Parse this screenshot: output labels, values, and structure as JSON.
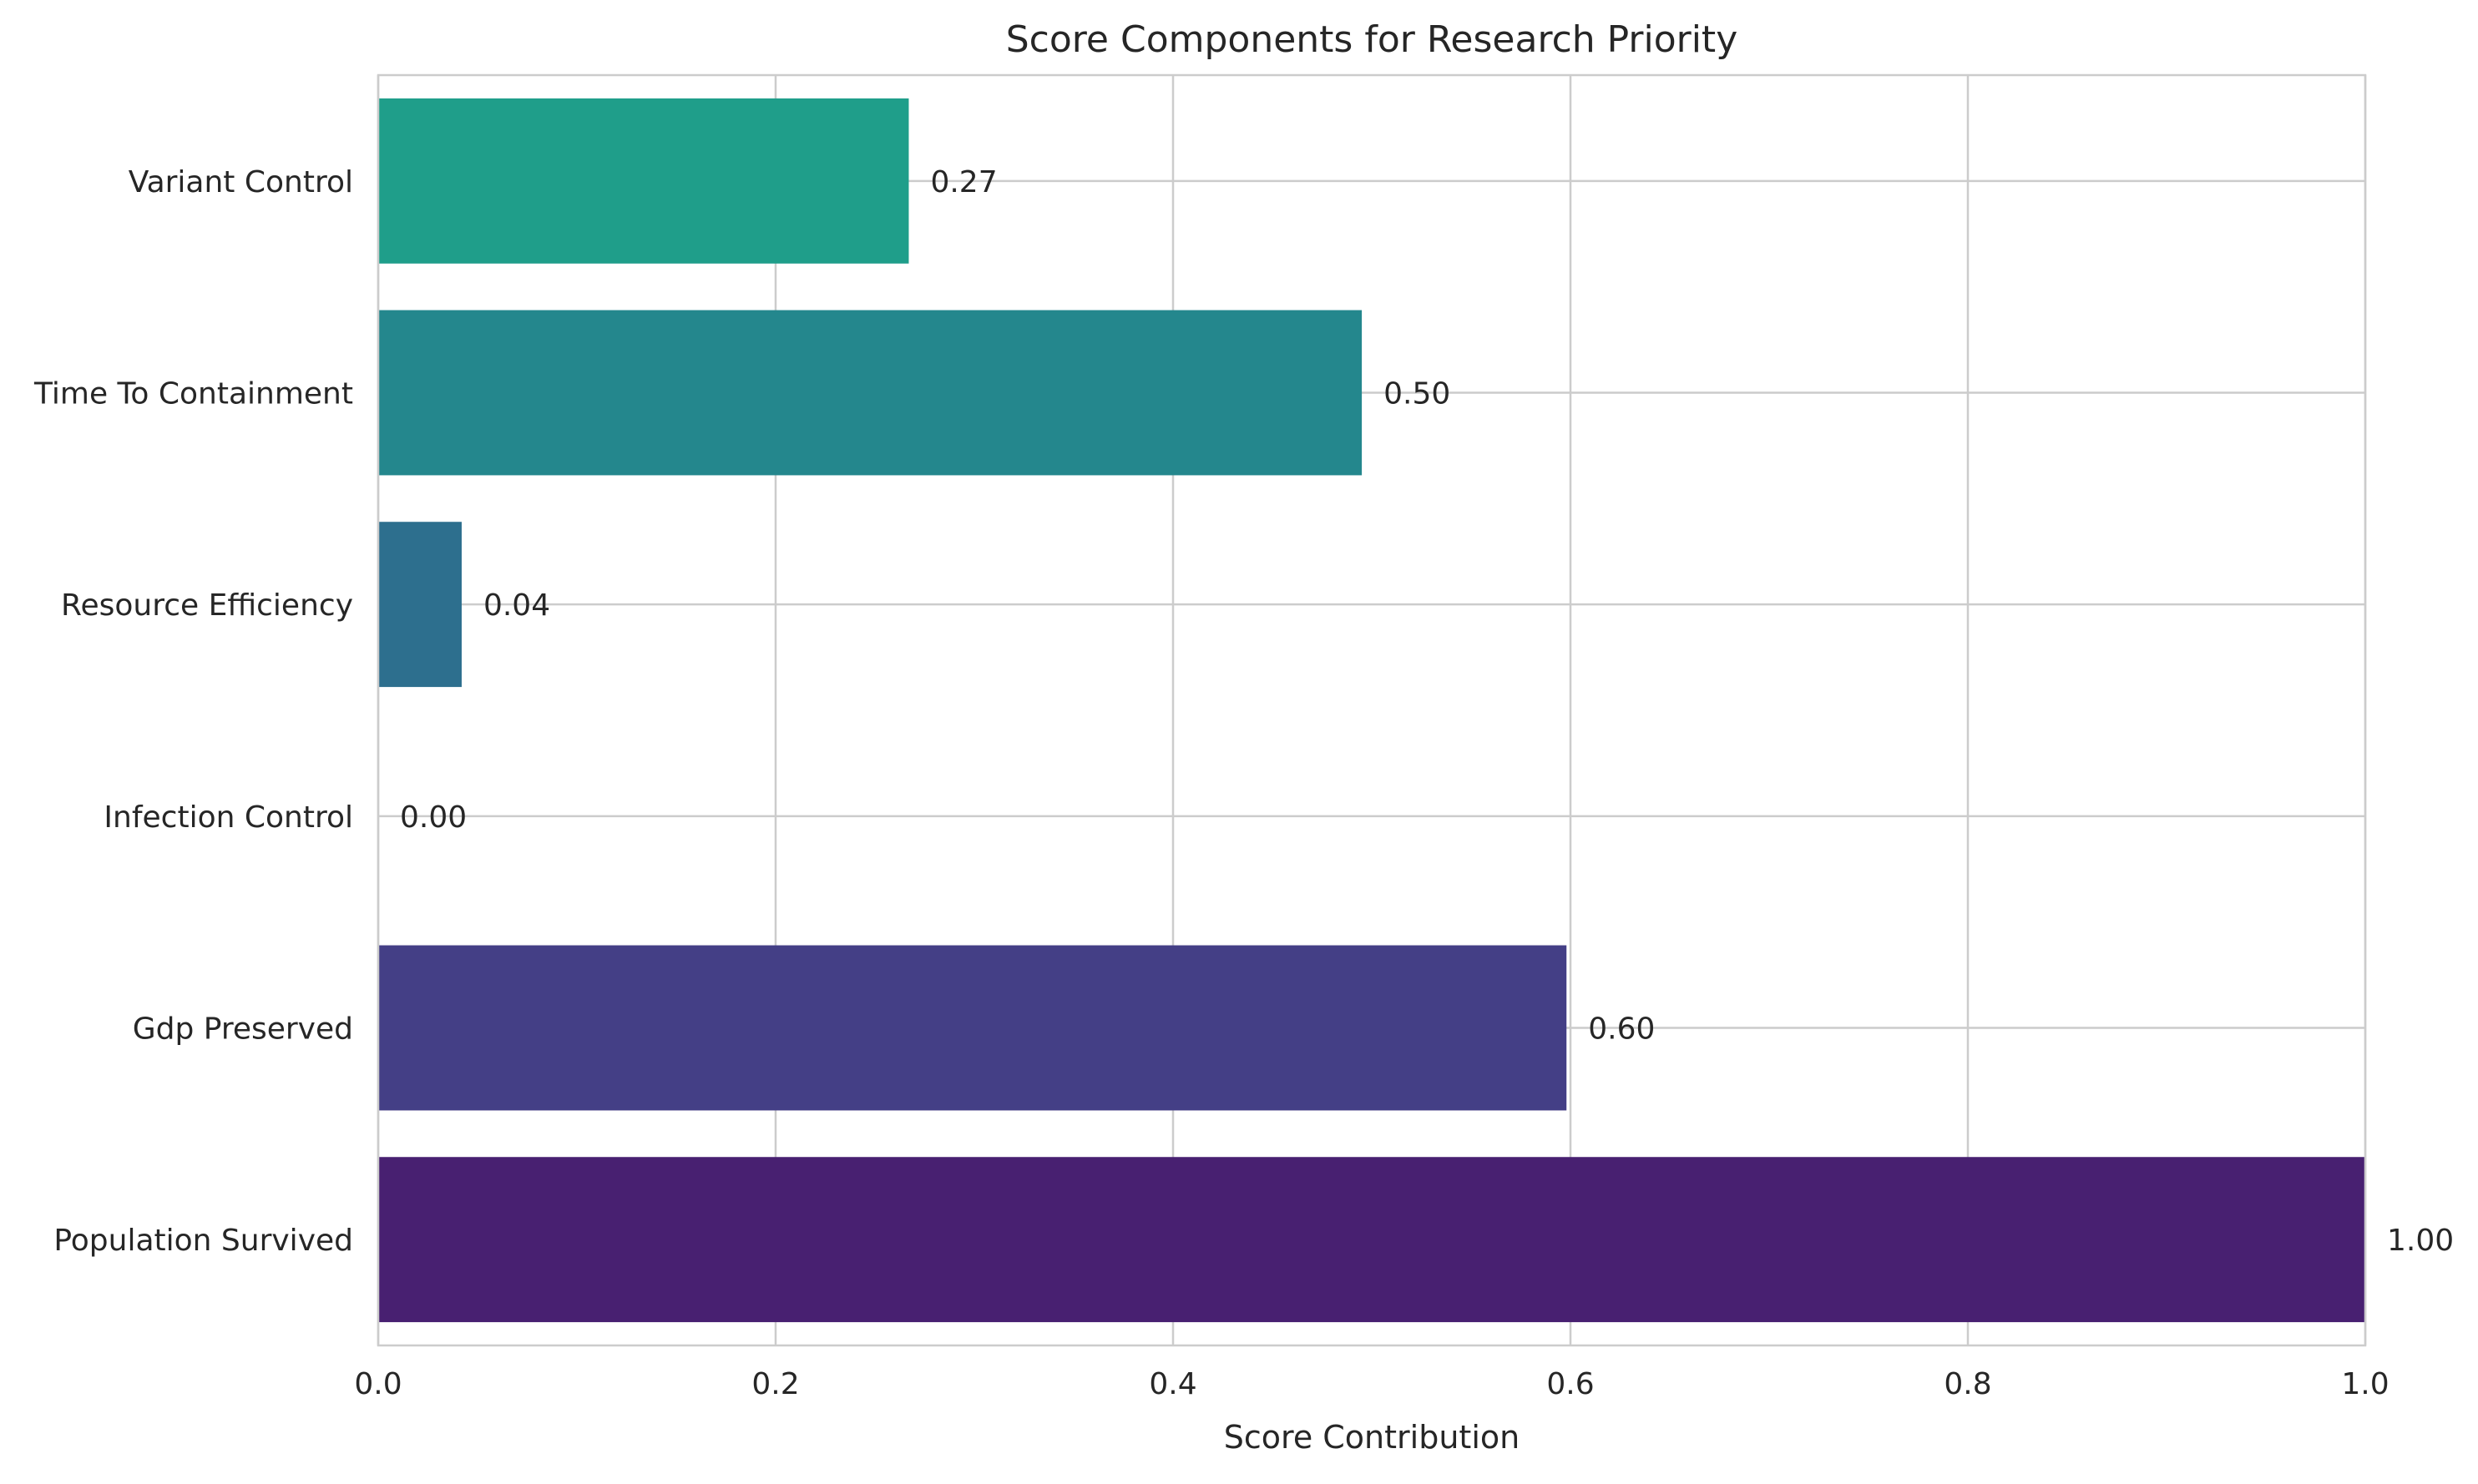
{
  "chart_data": {
    "type": "bar",
    "orientation": "horizontal",
    "title": "Score Components for Research Priority",
    "xlabel": "Score Contribution",
    "ylabel": "",
    "xlim": [
      0,
      1
    ],
    "xticks": [
      0.0,
      0.2,
      0.4,
      0.6,
      0.8,
      1.0
    ],
    "xtick_labels": [
      "0.0",
      "0.2",
      "0.4",
      "0.6",
      "0.8",
      "1.0"
    ],
    "grid": true,
    "legend": "none",
    "categories": [
      "Population Survived",
      "Gdp Preserved",
      "Infection Control",
      "Resource Efficiency",
      "Time To Containment",
      "Variant Control"
    ],
    "values": [
      1.0,
      0.598,
      0.0,
      0.042,
      0.495,
      0.267
    ],
    "value_labels": [
      "1.00",
      "0.60",
      "0.00",
      "0.04",
      "0.50",
      "0.27"
    ],
    "colors": [
      "#482071",
      "#443f86",
      "#3a568b",
      "#2d6f8e",
      "#24878d",
      "#1f9e8a"
    ]
  }
}
